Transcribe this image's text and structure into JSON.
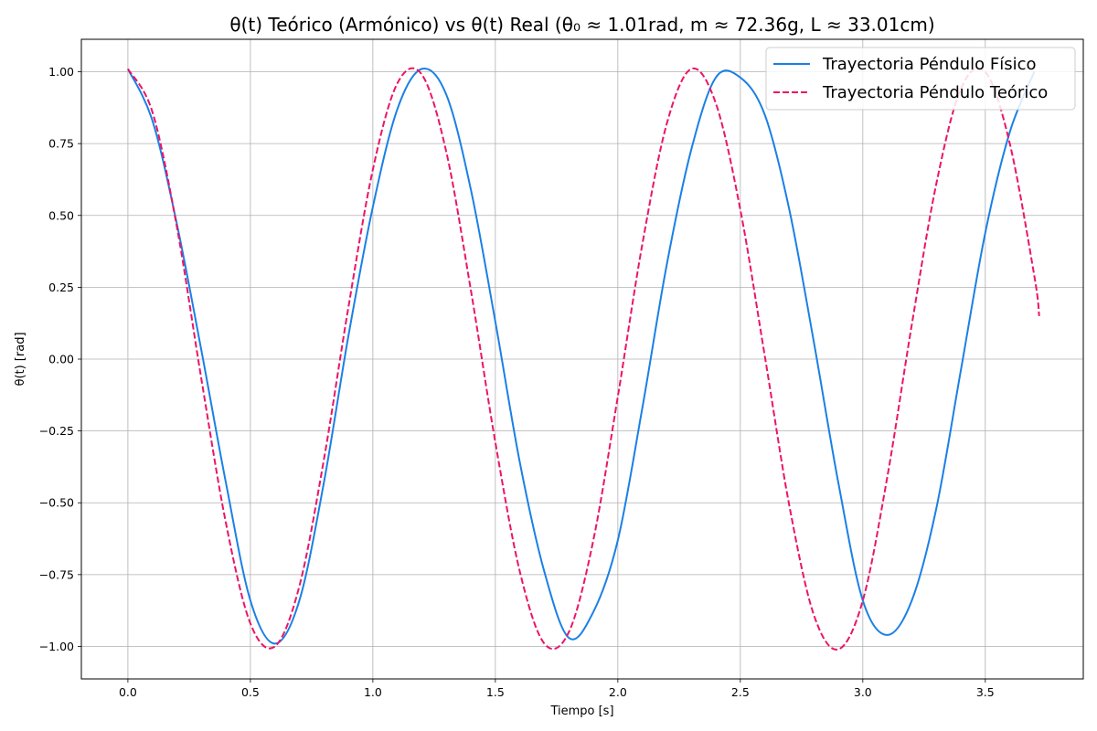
{
  "chart_data": {
    "type": "line",
    "title": "θ(t) Teórico (Armónico) vs θ(t) Real (θ₀ ≈ 1.01rad, m ≈ 72.36g, L ≈ 33.01cm)",
    "xlabel": "Tiempo [s]",
    "ylabel": "θ(t) [rad]",
    "xlim": [
      -0.19,
      3.9
    ],
    "ylim": [
      -1.113,
      1.113
    ],
    "xticks": [
      0.0,
      0.5,
      1.0,
      1.5,
      2.0,
      2.5,
      3.0,
      3.5
    ],
    "xtick_labels": [
      "0.0",
      "0.5",
      "1.0",
      "1.5",
      "2.0",
      "2.5",
      "3.0",
      "3.5"
    ],
    "yticks": [
      -1.0,
      -0.75,
      -0.5,
      -0.25,
      0.0,
      0.25,
      0.5,
      0.75,
      1.0
    ],
    "ytick_labels": [
      "−1.00",
      "−0.75",
      "−0.50",
      "−0.25",
      "0.00",
      "0.25",
      "0.50",
      "0.75",
      "1.00"
    ],
    "grid": true,
    "legend_position": "top-right",
    "series": [
      {
        "name": "Trayectoria Péndulo Físico",
        "color": "#1a80e6",
        "style": "solid",
        "x": [
          0.0,
          0.1,
          0.2,
          0.3,
          0.4,
          0.5,
          0.6,
          0.7,
          0.8,
          0.9,
          1.0,
          1.1,
          1.2,
          1.3,
          1.4,
          1.5,
          1.6,
          1.7,
          1.8,
          1.9,
          2.0,
          2.1,
          2.2,
          2.3,
          2.4,
          2.5,
          2.6,
          2.7,
          2.8,
          2.9,
          3.0,
          3.1,
          3.2,
          3.3,
          3.4,
          3.5,
          3.6,
          3.7
        ],
        "y": [
          1.01,
          0.83,
          0.47,
          0.03,
          -0.43,
          -0.84,
          -0.99,
          -0.84,
          -0.43,
          0.08,
          0.53,
          0.87,
          1.01,
          0.92,
          0.59,
          0.13,
          -0.36,
          -0.74,
          -0.97,
          -0.88,
          -0.63,
          -0.17,
          0.33,
          0.73,
          0.98,
          0.98,
          0.85,
          0.52,
          0.06,
          -0.43,
          -0.84,
          -0.96,
          -0.84,
          -0.52,
          -0.04,
          0.44,
          0.79,
          1.0
        ]
      },
      {
        "name": "Trayectoria Péndulo Teórico",
        "color": "#eb1566",
        "style": "dashed",
        "x": [
          0.0,
          0.1,
          0.2,
          0.3,
          0.4,
          0.5,
          0.6,
          0.7,
          0.8,
          0.9,
          1.0,
          1.1,
          1.2,
          1.3,
          1.4,
          1.5,
          1.6,
          1.7,
          1.8,
          1.9,
          2.0,
          2.1,
          2.2,
          2.3,
          2.4,
          2.5,
          2.6,
          2.7,
          2.8,
          2.9,
          3.0,
          3.1,
          3.2,
          3.3,
          3.4,
          3.5,
          3.6,
          3.7,
          3.72
        ],
        "y": [
          1.01,
          0.86,
          0.46,
          -0.07,
          -0.57,
          -0.92,
          -1.0,
          -0.79,
          -0.35,
          0.18,
          0.66,
          0.96,
          0.99,
          0.72,
          0.24,
          -0.29,
          -0.74,
          -0.99,
          -0.95,
          -0.63,
          -0.13,
          0.4,
          0.82,
          1.01,
          0.89,
          0.52,
          0.01,
          -0.51,
          -0.89,
          -1.01,
          -0.84,
          -0.41,
          0.12,
          0.61,
          0.94,
          1.0,
          0.75,
          0.29,
          0.15
        ]
      }
    ]
  }
}
